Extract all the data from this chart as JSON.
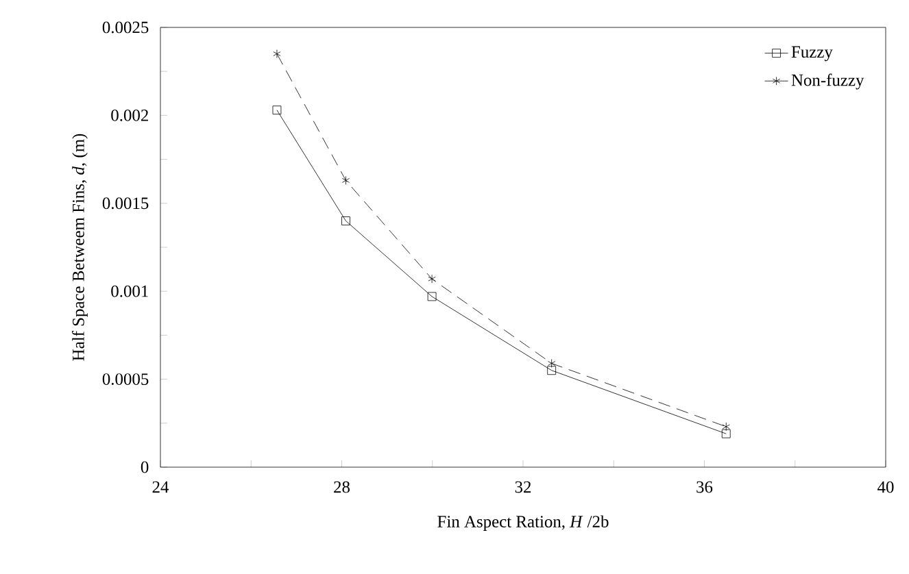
{
  "chart_data": {
    "type": "line",
    "xlabel": "Fin Aspect Ration, *H* /2b",
    "ylabel": "Half Space Betweem Fins, *d*, (m)",
    "x": [
      26.57,
      28.09,
      29.99,
      32.63,
      36.48
    ],
    "series": [
      {
        "name": "Fuzzy",
        "color": "#000000",
        "values": [
          0.00203,
          0.0014,
          0.00097,
          0.00055,
          0.00019
        ],
        "marker": "square",
        "line_style": "solid"
      },
      {
        "name": "Non-fuzzy",
        "color": "#000000",
        "values": [
          0.00235,
          0.00163,
          0.00107,
          0.00059,
          0.00023
        ],
        "marker": "cross",
        "line_style": "dashed"
      }
    ],
    "xlim": [
      24,
      40
    ],
    "ylim": [
      0,
      0.0025
    ],
    "xticks": [
      24,
      {
        "value": 26,
        "label": null
      },
      28,
      {
        "value": 30,
        "label": null
      },
      32,
      {
        "value": 34,
        "label": null
      },
      36,
      {
        "value": 38,
        "label": null
      },
      40
    ],
    "yticks": [
      0,
      {
        "value": 0.00025,
        "label": null
      },
      0.0005,
      {
        "value": 0.00075,
        "label": null
      },
      0.001,
      {
        "value": 0.00125,
        "label": null
      },
      0.0015,
      {
        "value": 0.00175,
        "label": null
      },
      0.002,
      {
        "value": 0.00225,
        "label": null
      },
      0.0025
    ],
    "legend": "top right",
    "grid": false
  }
}
